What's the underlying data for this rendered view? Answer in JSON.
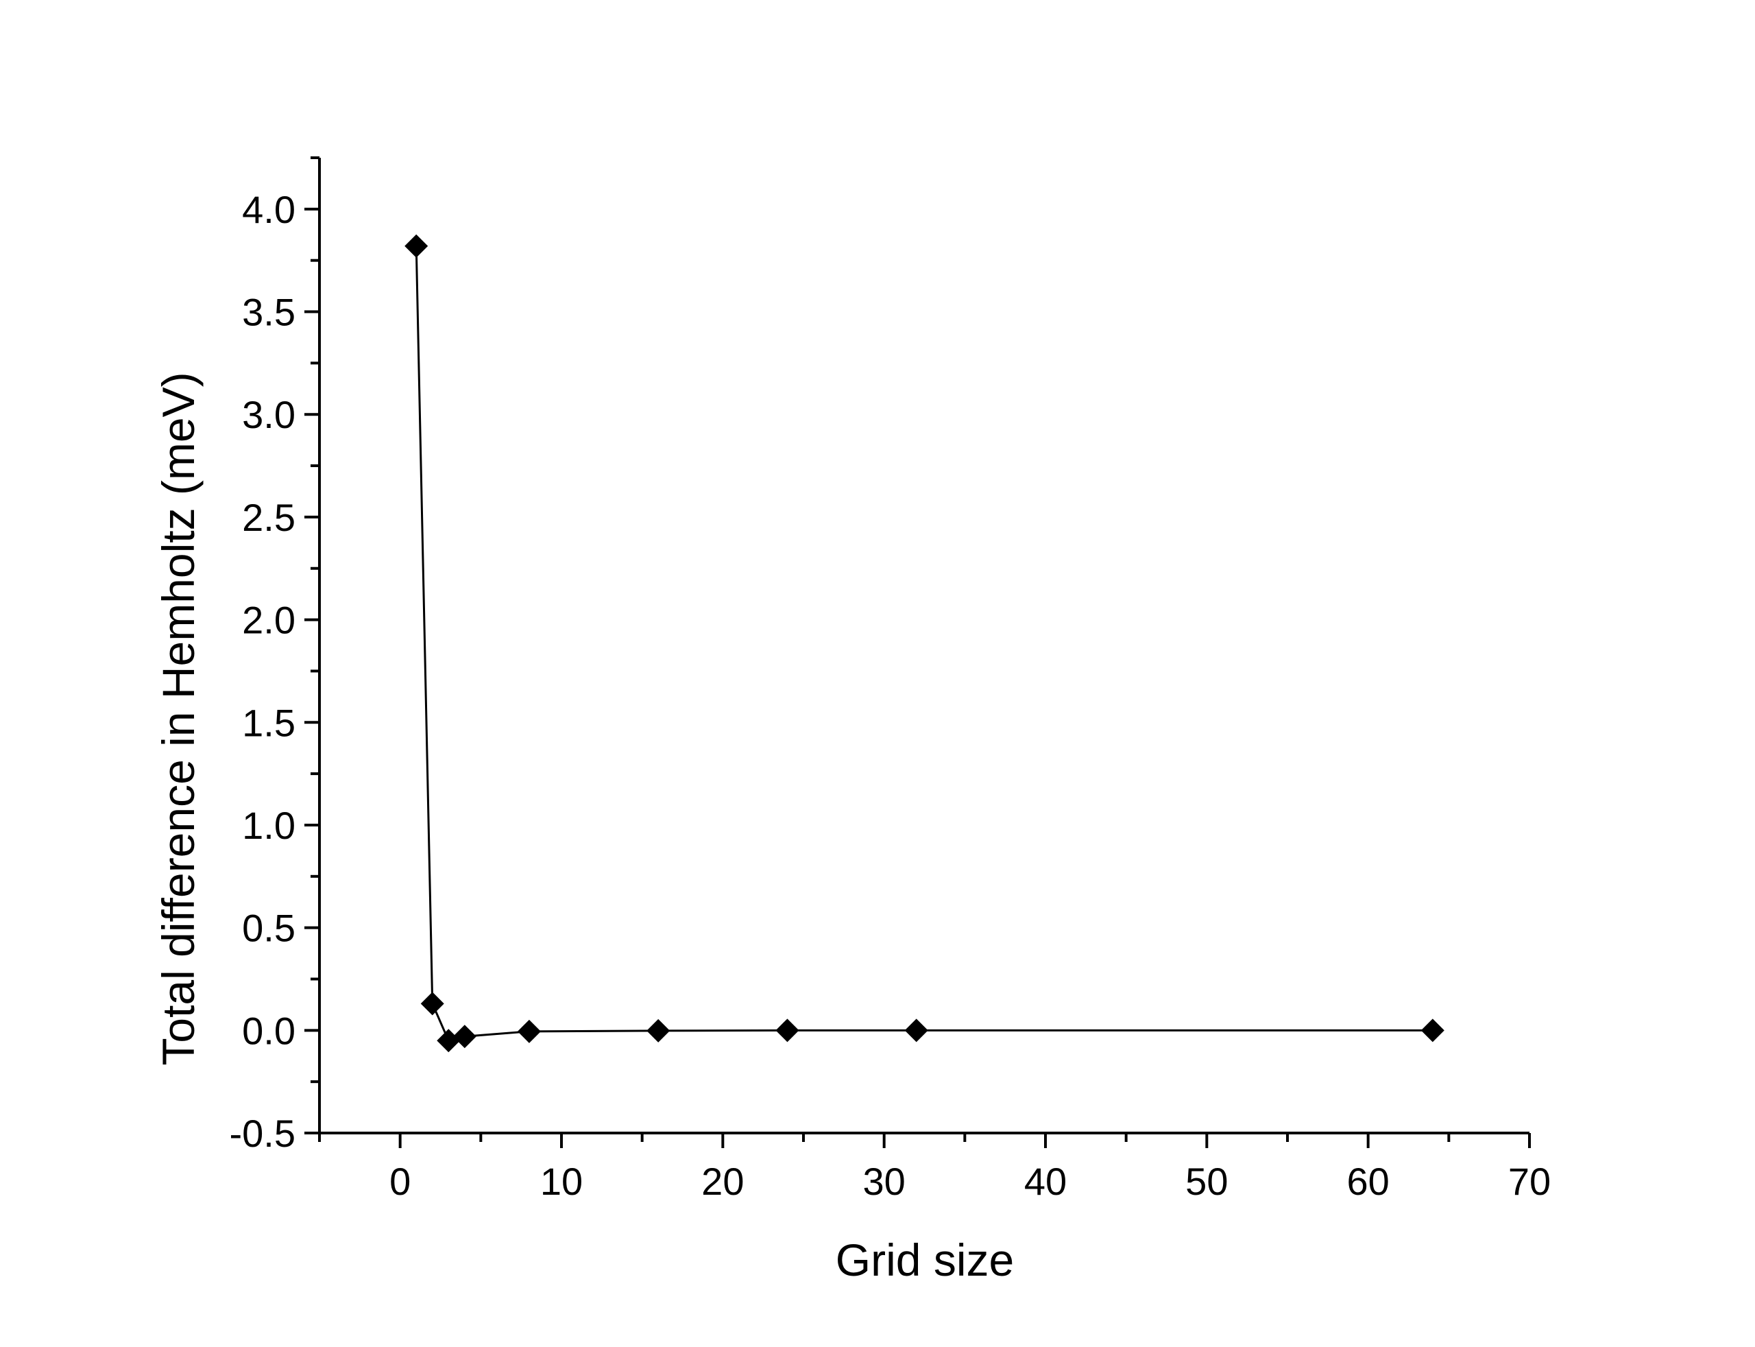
{
  "chart_data": {
    "type": "line",
    "title": "",
    "xlabel": "Grid size",
    "ylabel": "Total difference in Hemholtz (meV)",
    "xlim": [
      -5,
      70
    ],
    "ylim": [
      -0.5,
      4.25
    ],
    "x_ticks": [
      0,
      10,
      20,
      30,
      40,
      50,
      60,
      70
    ],
    "x_tick_labels": [
      "0",
      "10",
      "20",
      "30",
      "40",
      "50",
      "60",
      "70"
    ],
    "y_ticks": [
      -0.5,
      0.0,
      0.5,
      1.0,
      1.5,
      2.0,
      2.5,
      3.0,
      3.5,
      4.0
    ],
    "y_tick_labels": [
      "-0.5",
      "0.0",
      "0.5",
      "1.0",
      "1.5",
      "2.0",
      "2.5",
      "3.0",
      "3.5",
      "4.0"
    ],
    "grid": false,
    "marker": "diamond",
    "colors": {
      "line": "#000000",
      "marker": "#000000",
      "axis": "#000000"
    },
    "series": [
      {
        "x": [
          1,
          2,
          3,
          4,
          8,
          16,
          24,
          32,
          64
        ],
        "values": [
          3.82,
          0.13,
          -0.05,
          -0.03,
          -0.005,
          -0.002,
          0.0,
          0.0,
          0.0
        ]
      }
    ]
  }
}
